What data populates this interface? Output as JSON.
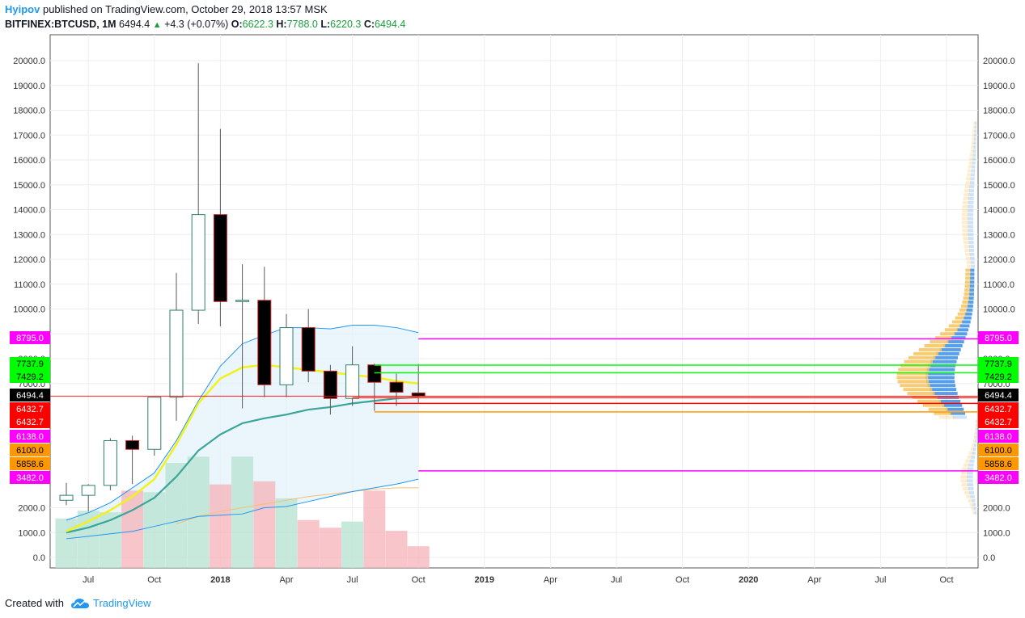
{
  "header": {
    "author": "Hyipov",
    "published": "published on TradingView.com, October 29, 2018 13:57 MSK",
    "symbol": "BITFINEX:BTCUSD, 1M",
    "last": "6494.4",
    "change": "+4.3 (+0.07%)",
    "o_label": "O:",
    "o": "6622.3",
    "h_label": "H:",
    "h": "7788.0",
    "l_label": "L:",
    "l": "6220.3",
    "c_label": "C:",
    "c": "6494.4"
  },
  "footer": {
    "created": "Created with",
    "brand": "TradingView"
  },
  "colors": {
    "up_body": "#ffffff",
    "down_body": "#000000",
    "wick": "#5a5a5a",
    "vol_up": "#b9e3d2",
    "vol_down": "#f5b7bd",
    "ema_yellow": "#f2f21a",
    "ema_teal": "#3aa59a",
    "band": "#2196f3",
    "slow_line": "#f5c06f",
    "magenta": "#ff00ff",
    "green": "#00ff00",
    "red": "#ff0000",
    "orange": "#ff9800",
    "vp_blue": "#3a8ee6",
    "vp_orange": "#f7c35c"
  },
  "chart_data": {
    "type": "candlestick",
    "ylim": [
      -400,
      20700
    ],
    "yticks": [
      "20000.0",
      "19000.0",
      "18000.0",
      "17000.0",
      "16000.0",
      "15000.0",
      "14000.0",
      "13000.0",
      "12000.0",
      "11000.0",
      "10000.0",
      "9000.0",
      "8000.0",
      "7000.0",
      "2000.0",
      "1000.0",
      "0.0"
    ],
    "x_axis": [
      "Jul",
      "Oct",
      "2018",
      "Apr",
      "Jul",
      "Oct",
      "2019",
      "Apr",
      "Jul",
      "Oct",
      "2020",
      "Apr",
      "Jul",
      "Oct"
    ],
    "candles": [
      {
        "t": "2017-06",
        "o": 2300,
        "h": 3000,
        "l": 2100,
        "c": 2500
      },
      {
        "t": "2017-07",
        "o": 2500,
        "h": 2950,
        "l": 1850,
        "c": 2900
      },
      {
        "t": "2017-08",
        "o": 2900,
        "h": 4800,
        "l": 2700,
        "c": 4700
      },
      {
        "t": "2017-09",
        "o": 4700,
        "h": 4900,
        "l": 2950,
        "c": 4350
      },
      {
        "t": "2017-10",
        "o": 4350,
        "h": 6450,
        "l": 4100,
        "c": 6450
      },
      {
        "t": "2017-11",
        "o": 6450,
        "h": 11450,
        "l": 5500,
        "c": 9950
      },
      {
        "t": "2017-12",
        "o": 9950,
        "h": 19900,
        "l": 9400,
        "c": 13800
      },
      {
        "t": "2018-01",
        "o": 13800,
        "h": 17250,
        "l": 9300,
        "c": 10300
      },
      {
        "t": "2018-02",
        "o": 10300,
        "h": 11800,
        "l": 6000,
        "c": 10350
      },
      {
        "t": "2018-03",
        "o": 10350,
        "h": 11700,
        "l": 6450,
        "c": 6950
      },
      {
        "t": "2018-04",
        "o": 6950,
        "h": 9800,
        "l": 6450,
        "c": 9250
      },
      {
        "t": "2018-05",
        "o": 9250,
        "h": 10000,
        "l": 7050,
        "c": 7500
      },
      {
        "t": "2018-06",
        "o": 7500,
        "h": 7750,
        "l": 5750,
        "c": 6400
      },
      {
        "t": "2018-07",
        "o": 6400,
        "h": 8500,
        "l": 6100,
        "c": 7750
      },
      {
        "t": "2018-08",
        "o": 7750,
        "h": 7800,
        "l": 5900,
        "c": 7050
      },
      {
        "t": "2018-09",
        "o": 7050,
        "h": 7400,
        "l": 6100,
        "c": 6650
      },
      {
        "t": "2018-10",
        "o": 6622.3,
        "h": 7788,
        "l": 6220.3,
        "c": 6494.4
      }
    ],
    "volume_relative": [
      0.32,
      0.37,
      0.36,
      0.5,
      0.49,
      0.68,
      0.72,
      0.54,
      0.72,
      0.56,
      0.45,
      0.31,
      0.26,
      0.3,
      0.5,
      0.24,
      0.14
    ],
    "ema_fast": [
      1050,
      1450,
      1900,
      2450,
      3150,
      4550,
      6200,
      7200,
      7650,
      7750,
      7650,
      7550,
      7450,
      7350,
      7250,
      7100,
      7000
    ],
    "ema_slow": [
      1000,
      1200,
      1500,
      1900,
      2400,
      3250,
      4300,
      4950,
      5400,
      5600,
      5750,
      5950,
      6050,
      6200,
      6300,
      6400,
      6450
    ],
    "bb_upper": [
      1500,
      1800,
      2200,
      2800,
      3400,
      4700,
      6300,
      7700,
      8600,
      8950,
      9250,
      9250,
      9200,
      9350,
      9350,
      9250,
      9050
    ],
    "bb_lower": [
      750,
      850,
      950,
      1050,
      1250,
      1450,
      1650,
      1700,
      1750,
      2000,
      2050,
      2250,
      2450,
      2650,
      2800,
      2950,
      3150
    ],
    "slow_ma": [
      null,
      null,
      null,
      null,
      null,
      1350,
      1650,
      1850,
      2000,
      2150,
      2300,
      2450,
      2550,
      2650,
      2750,
      2800,
      2800
    ],
    "levels": [
      {
        "label": "8795.0",
        "value": 8795.0,
        "color": "#ff00ff"
      },
      {
        "label": "7737.9",
        "value": 7737.9,
        "color": "#00ff00"
      },
      {
        "label": "7429.2",
        "value": 7429.2,
        "color": "#00ff00"
      },
      {
        "label": "6494.4",
        "value": 6494.4,
        "color": "#000000"
      },
      {
        "label": "6432.7",
        "value": 6432.7,
        "color": "#ff0000"
      },
      {
        "label": "6432.7",
        "value": 6200.0,
        "color": "#ff0000"
      },
      {
        "label": "6138.0",
        "value": 6138.0,
        "color": "#ff00ff"
      },
      {
        "label": "6100.0",
        "value": 6100.0,
        "color": "#ff9800"
      },
      {
        "label": "5858.6",
        "value": 5858.6,
        "color": "#ff9800"
      },
      {
        "label": "3482.0",
        "value": 3482.0,
        "color": "#ff00ff"
      }
    ]
  }
}
